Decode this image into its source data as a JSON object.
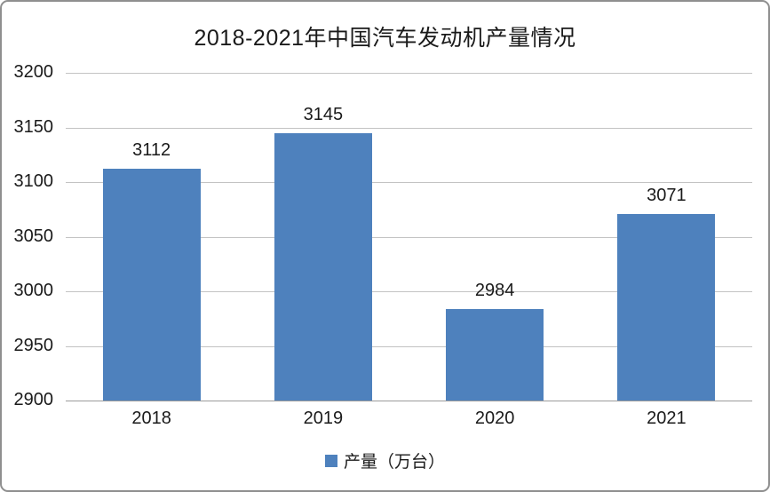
{
  "chart_data": {
    "type": "bar",
    "title": "2018-2021年中国汽车发动机产量情况",
    "categories": [
      "2018",
      "2019",
      "2020",
      "2021"
    ],
    "values": [
      3112,
      3145,
      2984,
      3071
    ],
    "series_name": "产量（万台）",
    "xlabel": "",
    "ylabel": "",
    "ylim": [
      2900,
      3200
    ],
    "ytick_step": 50,
    "yticks": [
      "2900",
      "2950",
      "3000",
      "3050",
      "3100",
      "3150",
      "3200"
    ],
    "grid": "horizontal",
    "legend_position": "bottom",
    "bar_color": "#4e81bd",
    "gridline_color": "#c3c3c3",
    "axis_line_color": "#9b9b9b",
    "data_labels_shown": true
  }
}
